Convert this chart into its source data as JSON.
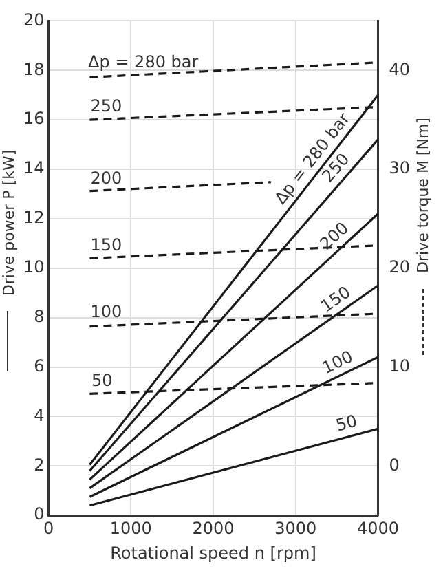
{
  "chart_data": {
    "type": "line",
    "xlabel": "Rotational speed n [rpm]",
    "ylabel": "Drive power P [kW]",
    "y2label": "Drive torque M [Nm]",
    "xlim": [
      0,
      4000
    ],
    "xticks": [
      0,
      1000,
      2000,
      3000,
      4000
    ],
    "ylim": [
      0,
      20
    ],
    "yticks": [
      0,
      2,
      4,
      6,
      8,
      10,
      12,
      14,
      16,
      18,
      20
    ],
    "y2lim": [
      -5,
      45
    ],
    "y2ticks": [
      0,
      10,
      20,
      30,
      40
    ],
    "grid": true,
    "legend": false,
    "marker": "none",
    "series": [
      {
        "color": "#1a1a1a",
        "line_style": "solid",
        "x": [
          500,
          4000
        ],
        "values": [
          0.4,
          3.5
        ]
      },
      {
        "color": "#1a1a1a",
        "line_style": "solid",
        "x": [
          500,
          4000
        ],
        "values": [
          0.75,
          6.4
        ]
      },
      {
        "color": "#1a1a1a",
        "line_style": "solid",
        "x": [
          500,
          4000
        ],
        "values": [
          1.1,
          9.3
        ]
      },
      {
        "color": "#1a1a1a",
        "line_style": "solid",
        "x": [
          500,
          4000
        ],
        "values": [
          1.45,
          12.2
        ]
      },
      {
        "color": "#1a1a1a",
        "line_style": "solid",
        "x": [
          500,
          4000
        ],
        "values": [
          1.8,
          15.2
        ]
      },
      {
        "color": "#1a1a1a",
        "line_style": "solid",
        "x": [
          500,
          4000
        ],
        "values": [
          2.05,
          17.0
        ]
      },
      {
        "color": "#1a1a1a",
        "line_style": "dashed",
        "axis": "y2",
        "x": [
          500,
          4000
        ],
        "values": [
          7.3,
          8.4
        ]
      },
      {
        "color": "#1a1a1a",
        "line_style": "dashed",
        "axis": "y2",
        "x": [
          500,
          4000
        ],
        "values": [
          14.1,
          15.4
        ]
      },
      {
        "color": "#1a1a1a",
        "line_style": "dashed",
        "axis": "y2",
        "x": [
          500,
          4000
        ],
        "values": [
          21,
          22.3
        ]
      },
      {
        "color": "#1a1a1a",
        "line_style": "dashed",
        "axis": "y2",
        "x": [
          500,
          2700
        ],
        "values": [
          27.8,
          28.7
        ]
      },
      {
        "color": "#1a1a1a",
        "line_style": "dashed",
        "axis": "y2",
        "x": [
          500,
          4000
        ],
        "values": [
          35,
          36.3
        ]
      },
      {
        "color": "#1a1a1a",
        "line_style": "dashed",
        "axis": "y2",
        "x": [
          500,
          4000
        ],
        "values": [
          39.3,
          40.8
        ]
      }
    ],
    "annotations": [
      {
        "text": "Δp = 280 bar",
        "x": 1150,
        "y": 17.8
      },
      {
        "text": "250",
        "x": 700,
        "y": 16.0
      },
      {
        "text": "200",
        "x": 700,
        "y": 13.1
      },
      {
        "text": "150",
        "x": 700,
        "y": 10.4
      },
      {
        "text": "100",
        "x": 700,
        "y": 7.7
      },
      {
        "text": "50",
        "x": 650,
        "y": 4.9
      },
      {
        "text": "Δp = 280 bar",
        "x": 3330,
        "y": 14.1
      },
      {
        "text": "250",
        "x": 3610,
        "y": 13.7
      },
      {
        "text": "200",
        "x": 3580,
        "y": 10.9
      },
      {
        "text": "150",
        "x": 3580,
        "y": 8.3
      },
      {
        "text": "100",
        "x": 3580,
        "y": 5.7
      },
      {
        "text": "50",
        "x": 3660,
        "y": 3.2
      }
    ]
  }
}
